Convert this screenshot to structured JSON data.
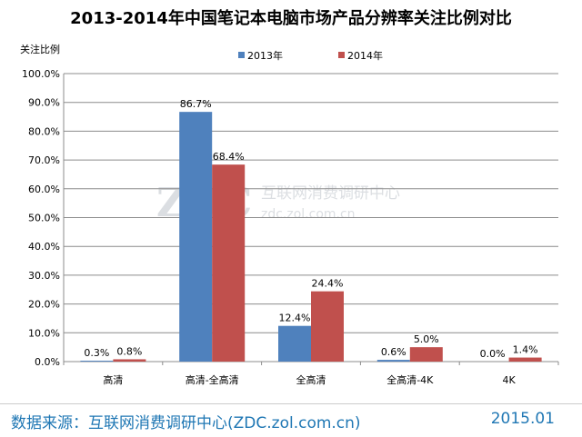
{
  "chart_data": {
    "type": "bar",
    "title": "2013-2014年中国笔记本电脑市场产品分辨率关注比例对比",
    "ylabel": "关注比例",
    "xlabel": "",
    "categories": [
      "高清",
      "高清-全高清",
      "全高清",
      "全高清-4K",
      "4K"
    ],
    "series": [
      {
        "name": "2013年",
        "values": [
          0.3,
          86.7,
          12.4,
          0.6,
          0.0
        ],
        "color": "#4f81bd"
      },
      {
        "name": "2014年",
        "values": [
          0.8,
          68.4,
          24.4,
          5.0,
          1.4
        ],
        "color": "#c0504d"
      }
    ],
    "ylim": [
      0,
      100
    ],
    "yticks": [
      0,
      10,
      20,
      30,
      40,
      50,
      60,
      70,
      80,
      90,
      100
    ],
    "ytick_format": "percent_1dp",
    "grid": true,
    "legend_position": "top-center"
  },
  "watermark": {
    "logo_text": "ZDC",
    "cn_text": "互联网消费调研中心",
    "url_text": "zdc.zol.com.cn"
  },
  "footer": {
    "source": "数据来源：互联网消费调研中心(ZDC.zol.com.cn)",
    "date": "2015.01"
  }
}
